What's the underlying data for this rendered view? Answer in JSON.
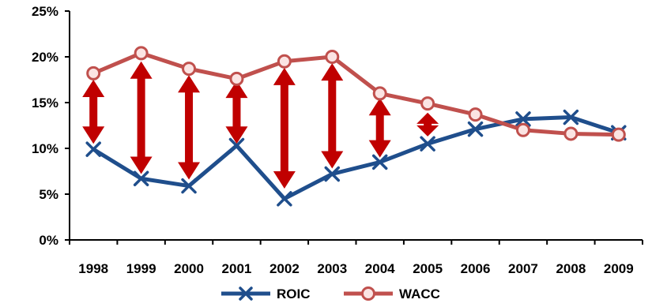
{
  "chart_data": {
    "type": "line",
    "categories": [
      "1998",
      "1999",
      "2000",
      "2001",
      "2002",
      "2003",
      "2004",
      "2005",
      "2006",
      "2007",
      "2008",
      "2009"
    ],
    "series": [
      {
        "name": "ROIC",
        "values": [
          9.9,
          6.7,
          5.9,
          10.3,
          4.5,
          7.2,
          8.5,
          10.5,
          12.1,
          13.2,
          13.4,
          11.7
        ],
        "color": "#1f4e8c",
        "marker": "x"
      },
      {
        "name": "WACC",
        "values": [
          18.2,
          20.4,
          18.7,
          17.6,
          19.5,
          20.0,
          16.0,
          14.9,
          13.7,
          12.0,
          11.6,
          11.5
        ],
        "color": "#c0504d",
        "marker": "circle"
      }
    ],
    "annotations": {
      "type": "double-arrow",
      "color": "#c00000",
      "description": "gap between WACC and ROIC",
      "arrows": [
        {
          "category": "1998",
          "from": 17.5,
          "to": 10.5
        },
        {
          "category": "1999",
          "from": 19.5,
          "to": 7.2
        },
        {
          "category": "2000",
          "from": 18.0,
          "to": 6.6
        },
        {
          "category": "2001",
          "from": 17.4,
          "to": 10.5
        },
        {
          "category": "2002",
          "from": 18.8,
          "to": 5.6
        },
        {
          "category": "2003",
          "from": 19.3,
          "to": 7.8
        },
        {
          "category": "2004",
          "from": 15.5,
          "to": 9.0
        },
        {
          "category": "2005",
          "from": 13.9,
          "to": 11.3
        }
      ]
    },
    "yticks": [
      "0%",
      "5%",
      "10%",
      "15%",
      "20%",
      "25%"
    ],
    "ylim": [
      0,
      25
    ],
    "grid": false,
    "legend": "bottom-center"
  }
}
